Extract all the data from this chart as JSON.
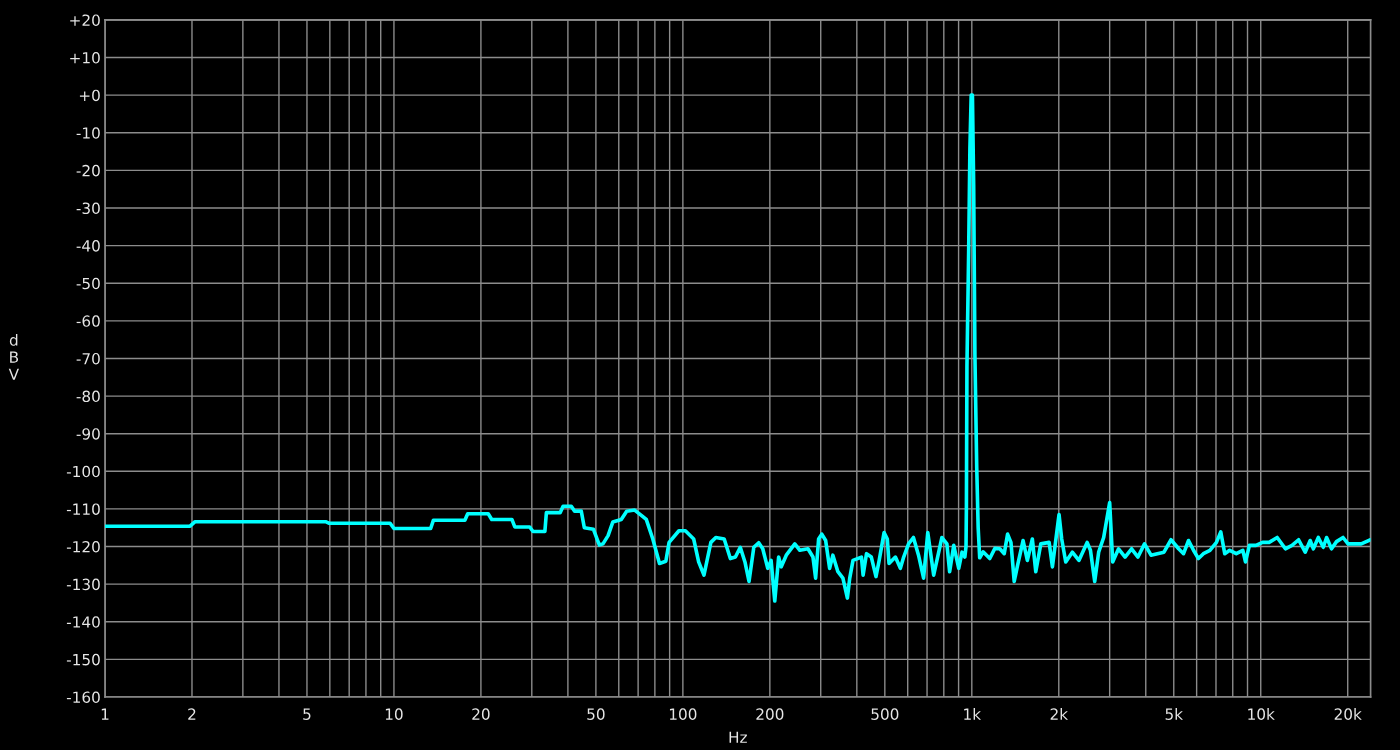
{
  "chart_data": {
    "type": "line",
    "xlabel": "Hz",
    "ylabel": "dBV",
    "log": "x",
    "grid": true,
    "xlim": [
      1,
      24000
    ],
    "ylim": [
      -160,
      20
    ],
    "xticks": [
      1,
      2,
      {
        "value": 3,
        "label": null
      },
      {
        "value": 4,
        "label": null
      },
      5,
      {
        "value": 6,
        "label": null
      },
      {
        "value": 7,
        "label": null
      },
      {
        "value": 8,
        "label": null
      },
      {
        "value": 9,
        "label": null
      },
      10,
      20,
      {
        "value": 30,
        "label": null
      },
      {
        "value": 40,
        "label": null
      },
      50,
      {
        "value": 60,
        "label": null
      },
      {
        "value": 70,
        "label": null
      },
      {
        "value": 80,
        "label": null
      },
      {
        "value": 90,
        "label": null
      },
      100,
      200,
      {
        "value": 300,
        "label": null
      },
      {
        "value": 400,
        "label": null
      },
      500,
      {
        "value": 600,
        "label": null
      },
      {
        "value": 700,
        "label": null
      },
      {
        "value": 800,
        "label": null
      },
      {
        "value": 900,
        "label": null
      },
      {
        "value": 1000,
        "label": "1k"
      },
      {
        "value": 2000,
        "label": "2k"
      },
      {
        "value": 3000,
        "label": null
      },
      {
        "value": 4000,
        "label": null
      },
      {
        "value": 5000,
        "label": "5k"
      },
      {
        "value": 6000,
        "label": null
      },
      {
        "value": 7000,
        "label": null
      },
      {
        "value": 8000,
        "label": null
      },
      {
        "value": 9000,
        "label": null
      },
      {
        "value": 10000,
        "label": "10k"
      },
      {
        "value": 20000,
        "label": "20k"
      }
    ],
    "yticks": [
      {
        "value": 20,
        "label": "+20"
      },
      {
        "value": 10,
        "label": "+10"
      },
      {
        "value": 0,
        "label": "+0"
      },
      -10,
      -20,
      -30,
      -40,
      -50,
      -60,
      -70,
      -80,
      -90,
      -100,
      -110,
      -120,
      -130,
      -140,
      -150,
      -160
    ],
    "series": [
      {
        "color": "#00ffff",
        "x": [
          1,
          1.97,
          2.05,
          5.8,
          5.95,
          9.7,
          10.0,
          13.4,
          13.7,
          17.6,
          18.0,
          21.2,
          21.8,
          25.6,
          26.2,
          29.5,
          30.3,
          33.3,
          33.7,
          37.6,
          38.5,
          41.1,
          42.2,
          44.5,
          45.6,
          49.0,
          51.4,
          52.9,
          55.1,
          57.2,
          61.2,
          63.9,
          68.1,
          71.8,
          74.7,
          78.7,
          83.0,
          87.3,
          89.6,
          96.9,
          102,
          109,
          113.4,
          118.3,
          125,
          130,
          139,
          146,
          152,
          158,
          164,
          169.4,
          176,
          183,
          189,
          196.7,
          202,
          208,
          214.5,
          219,
          228,
          244,
          254,
          271,
          282,
          288,
          295,
          302.5,
          312,
          322,
          330.5,
          344,
          358,
          371,
          378,
          388,
          415,
          420.5,
          432,
          449,
          466,
          478,
          497,
          510,
          517,
          544,
          566,
          581,
          604,
          628,
          654,
          681,
          704,
          738,
          788,
          820,
          838,
          866,
          901,
          925,
          946,
          955,
          958,
          962,
          975,
          985,
          995,
          1005,
          1015,
          1025,
          1040,
          1052,
          1065,
          1094,
          1154,
          1202,
          1250,
          1295,
          1330,
          1366,
          1402,
          1440,
          1505,
          1557,
          1620,
          1665,
          1733,
          1852,
          1901,
          2004,
          2047,
          2114,
          2228,
          2348,
          2507,
          2574,
          2663,
          2748,
          2860,
          3000,
          3073,
          3220,
          3392,
          3573,
          3759,
          3960,
          4172,
          4389,
          4624,
          4892,
          5197,
          5406,
          5624,
          5851,
          6086,
          6332,
          6670,
          7026,
          7271,
          7506,
          7808,
          8228,
          8670,
          8854,
          9137,
          9627,
          10145,
          10690,
          11400,
          12170,
          12830,
          13520,
          14250,
          14830,
          15210,
          15820,
          16460,
          16900,
          17580,
          18290,
          19270,
          20050,
          21130,
          22270,
          24000
        ],
        "values": [
          -114.6,
          -114.6,
          -113.4,
          -113.4,
          -113.8,
          -113.8,
          -115.2,
          -115.2,
          -113.0,
          -113.0,
          -111.3,
          -111.3,
          -112.8,
          -112.8,
          -114.8,
          -114.8,
          -116.0,
          -116.0,
          -111.0,
          -111.0,
          -109.3,
          -109.3,
          -110.6,
          -110.6,
          -115.0,
          -115.4,
          -119.6,
          -119.3,
          -117.1,
          -113.5,
          -112.8,
          -110.6,
          -110.3,
          -111.7,
          -112.8,
          -118.0,
          -124.5,
          -123.9,
          -118.9,
          -115.8,
          -115.8,
          -118.0,
          -124.1,
          -127.6,
          -118.9,
          -117.6,
          -118.0,
          -123.2,
          -122.8,
          -120.2,
          -124.1,
          -129.3,
          -120.2,
          -119.0,
          -120.6,
          -125.8,
          -123.7,
          -134.5,
          -122.8,
          -125.4,
          -122.3,
          -119.3,
          -121.0,
          -120.6,
          -122.8,
          -128.4,
          -118.0,
          -116.7,
          -118.4,
          -125.8,
          -122.3,
          -126.7,
          -128.4,
          -133.7,
          -128.4,
          -123.7,
          -122.8,
          -127.6,
          -121.9,
          -122.8,
          -128.0,
          -123.7,
          -116.3,
          -118.0,
          -124.5,
          -122.8,
          -125.8,
          -122.8,
          -119.3,
          -117.6,
          -122.3,
          -128.4,
          -116.3,
          -127.6,
          -117.6,
          -119.3,
          -126.7,
          -119.7,
          -125.8,
          -121.5,
          -122.8,
          -120.0,
          -109,
          -72,
          -42,
          -14,
          0,
          0,
          -24,
          -69,
          -99,
          -115,
          -123,
          -121.4,
          -123.2,
          -120.5,
          -120.6,
          -121.9,
          -116.7,
          -118.9,
          -129.3,
          -125.0,
          -118.4,
          -123.7,
          -118.0,
          -126.7,
          -119.3,
          -118.9,
          -125.4,
          -111.5,
          -118.0,
          -124.1,
          -121.5,
          -123.7,
          -118.9,
          -121.0,
          -129.3,
          -121.5,
          -117.6,
          -108.3,
          -124.1,
          -120.6,
          -122.8,
          -120.6,
          -122.8,
          -119.3,
          -122.3,
          -121.9,
          -121.5,
          -118.2,
          -120.6,
          -121.9,
          -118.4,
          -121.0,
          -123.2,
          -121.9,
          -121.0,
          -118.9,
          -116.1,
          -121.9,
          -121.0,
          -121.9,
          -121.0,
          -124.1,
          -119.7,
          -119.7,
          -118.9,
          -118.9,
          -117.6,
          -120.6,
          -119.7,
          -118.2,
          -121.5,
          -118.4,
          -120.6,
          -117.6,
          -120.2,
          -117.6,
          -120.6,
          -118.7,
          -117.6,
          -119.3,
          -119.3,
          -119.3,
          -118.2
        ]
      }
    ]
  }
}
